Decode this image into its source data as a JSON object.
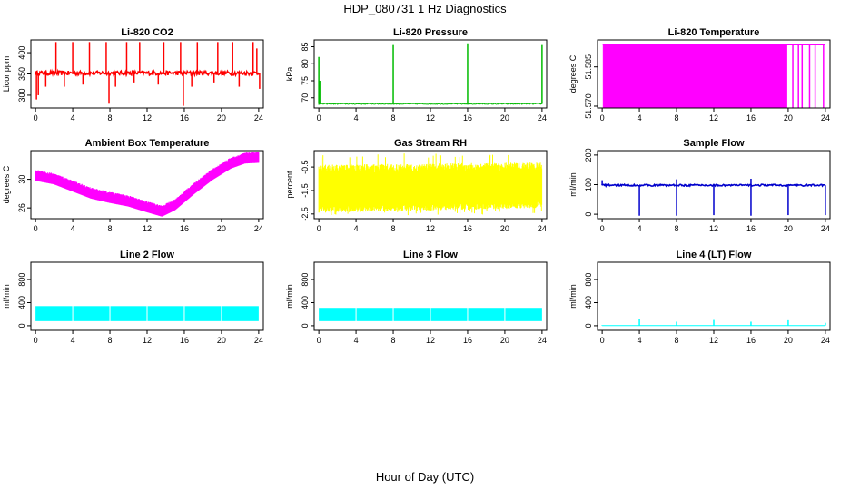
{
  "figure": {
    "title": "HDP_080731  1 Hz Diagnostics",
    "xlabel": "Hour of Day (UTC)"
  },
  "chart_data": [
    {
      "type": "line",
      "title": "Li-820 CO2",
      "ylabel": "Licor ppm",
      "xlim": [
        -0.5,
        24.5
      ],
      "ylim": [
        270,
        430
      ],
      "xticks": [
        "0",
        "4",
        "8",
        "12",
        "16",
        "20",
        "24"
      ],
      "yticks": [
        {
          "v": 300,
          "t": "300"
        },
        {
          "v": 350,
          "t": "350"
        },
        {
          "v": 400,
          "t": "400"
        }
      ],
      "color": "#ff0000",
      "style": {
        "base": 352,
        "noise": 5,
        "spikes_up": [
          [
            2.2,
            425
          ],
          [
            4,
            425
          ],
          [
            5.8,
            425
          ],
          [
            7.6,
            425
          ],
          [
            9.8,
            425
          ],
          [
            11.2,
            425
          ],
          [
            13.8,
            425
          ],
          [
            15.6,
            425
          ],
          [
            17.4,
            425
          ],
          [
            19.6,
            425
          ],
          [
            21.2,
            425
          ],
          [
            23.4,
            425
          ],
          [
            23.8,
            410
          ]
        ],
        "spikes_down": [
          [
            0.1,
            290
          ],
          [
            0.3,
            300
          ],
          [
            1.1,
            320
          ],
          [
            3.1,
            320
          ],
          [
            5.1,
            325
          ],
          [
            7.9,
            280
          ],
          [
            8.6,
            320
          ],
          [
            10.6,
            330
          ],
          [
            13.2,
            325
          ],
          [
            15.9,
            275
          ],
          [
            16.8,
            320
          ],
          [
            19.2,
            330
          ],
          [
            21.9,
            320
          ],
          [
            24.1,
            315
          ]
        ]
      }
    },
    {
      "type": "line",
      "title": "Li-820 Pressure",
      "ylabel": "kPa",
      "xlim": [
        -0.5,
        24.5
      ],
      "ylim": [
        67,
        87
      ],
      "xticks": [
        "0",
        "4",
        "8",
        "12",
        "16",
        "20",
        "24"
      ],
      "yticks": [
        {
          "v": 70,
          "t": "70"
        },
        {
          "v": 75,
          "t": "75"
        },
        {
          "v": 80,
          "t": "80"
        },
        {
          "v": 85,
          "t": "85"
        }
      ],
      "color": "#00bb00",
      "style": {
        "base": 68.2,
        "noise": 0.15,
        "spikes_up": [
          [
            0,
            82
          ],
          [
            0.1,
            75
          ],
          [
            8,
            85.5
          ],
          [
            16,
            86
          ],
          [
            24,
            85.5
          ]
        ],
        "spikes_down": []
      }
    },
    {
      "type": "area",
      "title": "Li-820 Temperature",
      "ylabel": "degrees C",
      "xlim": [
        -0.5,
        24.5
      ],
      "ylim": [
        51.5693,
        51.5953
      ],
      "xticks": [
        "0",
        "4",
        "8",
        "12",
        "16",
        "20",
        "24"
      ],
      "yticks": [
        {
          "v": 51.57,
          "t": "51.570"
        },
        {
          "v": 51.585,
          "t": "51.585"
        }
      ],
      "color": "#ff00ff",
      "style": {
        "top": 51.5935,
        "fill_until": 19.9,
        "gaps": [
          20.5,
          21.1,
          21.5,
          22.3,
          22.9,
          23.8
        ]
      }
    },
    {
      "type": "line",
      "title": "Ambient Box Temperature",
      "ylabel": "degrees C",
      "xlim": [
        -0.5,
        24.5
      ],
      "ylim": [
        24.5,
        34
      ],
      "xticks": [
        "0",
        "4",
        "8",
        "12",
        "16",
        "20",
        "24"
      ],
      "yticks": [
        {
          "v": 26,
          "t": "26"
        },
        {
          "v": 30,
          "t": "30"
        }
      ],
      "color": "#ff00ff",
      "style": {
        "curve": [
          [
            0,
            30.5
          ],
          [
            2,
            30
          ],
          [
            4,
            29
          ],
          [
            6,
            28
          ],
          [
            8,
            27.4
          ],
          [
            10,
            26.9
          ],
          [
            12,
            26.1
          ],
          [
            13.6,
            25.5
          ],
          [
            15,
            26.4
          ],
          [
            17,
            28.6
          ],
          [
            19,
            30.6
          ],
          [
            21,
            32.2
          ],
          [
            22.5,
            32.9
          ],
          [
            24,
            33
          ]
        ],
        "noise": 0.7
      }
    },
    {
      "type": "line",
      "title": "Gas Stream RH",
      "ylabel": "percent",
      "xlim": [
        -0.5,
        24.5
      ],
      "ylim": [
        -2.7,
        0.2
      ],
      "xticks": [
        "0",
        "4",
        "8",
        "12",
        "16",
        "20",
        "24"
      ],
      "yticks": [
        {
          "v": -2.5,
          "t": "-2.5"
        },
        {
          "v": -1.5,
          "t": "-1.5"
        },
        {
          "v": -0.5,
          "t": "-0.5"
        }
      ],
      "color": "#ffff00",
      "style": {
        "band": [
          -2.2,
          -0.7
        ],
        "band_end": [
          -2.0,
          -0.6
        ],
        "spike_hi": -0.1,
        "spike_lo": -2.55
      }
    },
    {
      "type": "line",
      "title": "Sample Flow",
      "ylabel": "ml/min",
      "xlim": [
        -0.5,
        24.5
      ],
      "ylim": [
        -15,
        215
      ],
      "xticks": [
        "0",
        "4",
        "8",
        "12",
        "16",
        "20",
        "24"
      ],
      "yticks": [
        {
          "v": 0,
          "t": "0"
        },
        {
          "v": 100,
          "t": "100"
        },
        {
          "v": 200,
          "t": "200"
        }
      ],
      "color": "#0000cc",
      "style": {
        "base": 98,
        "noise": 3,
        "spikes_up": [
          [
            0,
            115
          ],
          [
            8,
            118
          ],
          [
            16,
            120
          ]
        ],
        "spikes_down": [
          [
            4,
            -5
          ],
          [
            8,
            -5
          ],
          [
            12,
            -3
          ],
          [
            16,
            -5
          ],
          [
            20,
            -3
          ],
          [
            24,
            -3
          ]
        ]
      }
    },
    {
      "type": "area",
      "title": "Line 2 Flow",
      "ylabel": "ml/min",
      "xlim": [
        -0.5,
        24.5
      ],
      "ylim": [
        -80,
        1100
      ],
      "xticks": [
        "0",
        "4",
        "8",
        "12",
        "16",
        "20",
        "24"
      ],
      "yticks": [
        {
          "v": 0,
          "t": "0"
        },
        {
          "v": 400,
          "t": "400"
        },
        {
          "v": 800,
          "t": "800"
        }
      ],
      "color": "#00ffff",
      "style": {
        "low": 80,
        "high": 340,
        "gaps": [
          4,
          8,
          12,
          16,
          20
        ]
      }
    },
    {
      "type": "area",
      "title": "Line 3 Flow",
      "ylabel": "ml/min",
      "xlim": [
        -0.5,
        24.5
      ],
      "ylim": [
        -80,
        1100
      ],
      "xticks": [
        "0",
        "4",
        "8",
        "12",
        "16",
        "20",
        "24"
      ],
      "yticks": [
        {
          "v": 0,
          "t": "0"
        },
        {
          "v": 400,
          "t": "400"
        },
        {
          "v": 800,
          "t": "800"
        }
      ],
      "color": "#00ffff",
      "style": {
        "low": 80,
        "high": 310,
        "gaps": [
          4,
          8,
          12,
          16,
          20
        ]
      }
    },
    {
      "type": "line",
      "title": "Line 4 (LT) Flow",
      "ylabel": "ml/min",
      "xlim": [
        -0.5,
        24.5
      ],
      "ylim": [
        -80,
        1100
      ],
      "xticks": [
        "0",
        "4",
        "8",
        "12",
        "16",
        "20",
        "24"
      ],
      "yticks": [
        {
          "v": 0,
          "t": "0"
        },
        {
          "v": 400,
          "t": "400"
        },
        {
          "v": 800,
          "t": "800"
        }
      ],
      "color": "#00ffff",
      "style": {
        "base": 3,
        "noise": 0,
        "spikes_up": [
          [
            4,
            110
          ],
          [
            8,
            70
          ],
          [
            12,
            100
          ],
          [
            16,
            70
          ],
          [
            20,
            95
          ],
          [
            24,
            50
          ]
        ],
        "spikes_down": []
      }
    }
  ]
}
